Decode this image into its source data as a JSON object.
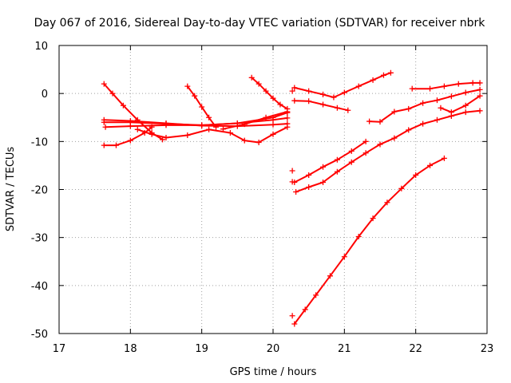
{
  "chart_data": {
    "type": "scatter",
    "title": "Day 067 of 2016, Sidereal Day-to-day VTEC variation (SDTVAR) for receiver nbrk",
    "xlabel": "GPS time / hours",
    "ylabel": "SDTVAR / TECUs",
    "xlim": [
      17,
      23
    ],
    "ylim": [
      -50,
      10
    ],
    "xticks": [
      17,
      18,
      19,
      20,
      21,
      22,
      23
    ],
    "yticks": [
      -50,
      -40,
      -30,
      -20,
      -10,
      0,
      10
    ],
    "grid": true,
    "marker": "plus",
    "color": "#ff0000",
    "series": [
      {
        "x": [
          17.63,
          17.75,
          17.9,
          18.1,
          18.3,
          18.45
        ],
        "y": [
          2.0,
          0.0,
          -2.5,
          -5.5,
          -8.2,
          -9.6
        ]
      },
      {
        "x": [
          17.63,
          17.8,
          18.0,
          18.2,
          18.3
        ],
        "y": [
          -10.8,
          -10.8,
          -9.8,
          -8.2,
          -7.0
        ]
      },
      {
        "x": [
          17.63,
          18.0,
          18.5,
          19.0,
          19.5,
          20.0,
          20.2
        ],
        "y": [
          -5.5,
          -5.7,
          -6.2,
          -6.7,
          -6.8,
          -6.5,
          -6.3
        ]
      },
      {
        "x": [
          17.63,
          18.0,
          18.5,
          19.0,
          19.5,
          20.0,
          20.2
        ],
        "y": [
          -6.0,
          -6.0,
          -6.3,
          -6.6,
          -6.2,
          -5.5,
          -5.1
        ]
      },
      {
        "x": [
          17.65,
          18.0,
          18.5,
          19.0,
          19.5,
          20.0,
          20.2
        ],
        "y": [
          -7.0,
          -6.8,
          -6.6,
          -6.6,
          -6.2,
          -5.0,
          -4.0
        ]
      },
      {
        "x": [
          18.1,
          18.3,
          18.5,
          18.8,
          19.1,
          19.4,
          19.6,
          19.8,
          20.0,
          20.2
        ],
        "y": [
          -7.5,
          -8.5,
          -9.2,
          -8.7,
          -7.5,
          -8.2,
          -9.8,
          -10.2,
          -8.5,
          -7.0
        ]
      },
      {
        "x": [
          18.8,
          18.9,
          19.0,
          19.1,
          19.2
        ],
        "y": [
          1.5,
          -0.5,
          -2.8,
          -5.0,
          -7.0
        ]
      },
      {
        "x": [
          19.7,
          19.8,
          19.9,
          20.0,
          20.1,
          20.2
        ],
        "y": [
          3.3,
          2.0,
          0.5,
          -1.0,
          -2.3,
          -3.2
        ]
      },
      {
        "x": [
          19.3,
          19.6,
          19.9,
          20.2
        ],
        "y": [
          -7.4,
          -6.4,
          -5.0,
          -3.8
        ]
      },
      {
        "x": [
          20.3,
          20.5,
          20.7,
          20.85,
          21.0,
          21.2,
          21.4,
          21.55,
          21.65
        ],
        "y": [
          1.2,
          0.5,
          -0.2,
          -0.8,
          0.2,
          1.5,
          2.8,
          3.8,
          4.3
        ]
      },
      {
        "x": [
          20.3,
          20.5,
          20.7,
          20.9,
          21.05
        ],
        "y": [
          -1.5,
          -1.6,
          -2.3,
          -3.0,
          -3.5
        ]
      },
      {
        "x": [
          20.3,
          20.5,
          20.7,
          20.9,
          21.1,
          21.3
        ],
        "y": [
          -18.5,
          -17.0,
          -15.3,
          -13.8,
          -12.0,
          -10.0
        ]
      },
      {
        "x": [
          20.32,
          20.5,
          20.7,
          20.9,
          21.1,
          21.3,
          21.5,
          21.7,
          21.9,
          22.1,
          22.3,
          22.5,
          22.7,
          22.9
        ],
        "y": [
          -20.5,
          -19.5,
          -18.5,
          -16.3,
          -14.3,
          -12.4,
          -10.6,
          -9.3,
          -7.6,
          -6.3,
          -5.5,
          -4.7,
          -3.9,
          -3.6
        ]
      },
      {
        "x": [
          21.35,
          21.5,
          21.7,
          21.9,
          22.1,
          22.3,
          22.5,
          22.7,
          22.9
        ],
        "y": [
          -5.8,
          -5.9,
          -3.8,
          -3.2,
          -2.0,
          -1.4,
          -0.6,
          0.2,
          0.8
        ]
      },
      {
        "x": [
          21.95,
          22.2,
          22.4,
          22.6,
          22.8,
          22.9
        ],
        "y": [
          1.0,
          1.0,
          1.5,
          2.0,
          2.2,
          2.2
        ]
      },
      {
        "x": [
          22.35,
          22.5,
          22.7,
          22.9
        ],
        "y": [
          -3.0,
          -3.9,
          -2.5,
          -0.5
        ]
      },
      {
        "x": [
          20.3,
          20.45,
          20.6,
          20.8,
          21.0,
          21.2,
          21.4,
          21.6,
          21.8,
          22.0,
          22.2,
          22.4
        ],
        "y": [
          -48.0,
          -45.0,
          -42.0,
          -38.0,
          -34.0,
          -29.8,
          -26.0,
          -22.7,
          -19.8,
          -17.0,
          -15.0,
          -13.5
        ]
      },
      {
        "x": [
          20.27,
          20.27,
          20.27,
          20.27
        ],
        "y": [
          -46.3,
          -16.1,
          -18.4,
          0.5
        ]
      }
    ]
  }
}
